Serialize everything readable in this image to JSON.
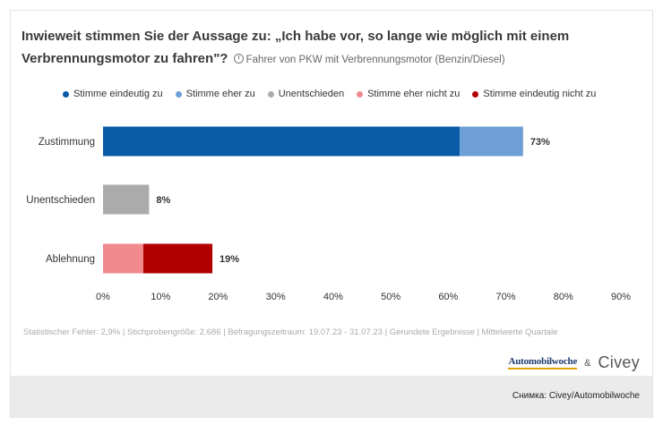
{
  "title": "Inwieweit stimmen Sie der Aussage zu: „Ich habe vor, so lange wie möglich mit einem Verbrennungsmotor zu fahren\"?",
  "subtitle": "Fahrer von PKW mit Verbrennungsmotor (Benzin/Diesel)",
  "legend": [
    {
      "label": "Stimme eindeutig zu",
      "color": "#0a5aa5"
    },
    {
      "label": "Stimme eher zu",
      "color": "#6d9fd6"
    },
    {
      "label": "Unentschieden",
      "color": "#ababab"
    },
    {
      "label": "Stimme eher nicht zu",
      "color": "#f08a8f"
    },
    {
      "label": "Stimme eindeutig nicht zu",
      "color": "#b00000"
    }
  ],
  "chart_data": {
    "type": "bar",
    "orientation": "horizontal",
    "stacked": true,
    "categories": [
      "Zustimmung",
      "Unentschieden",
      "Ablehnung"
    ],
    "series": [
      {
        "name": "Stimme eindeutig zu",
        "color": "#0a5aa5",
        "values": [
          62,
          0,
          0
        ]
      },
      {
        "name": "Stimme eher zu",
        "color": "#6d9fd6",
        "values": [
          11,
          0,
          0
        ]
      },
      {
        "name": "Unentschieden",
        "color": "#ababab",
        "values": [
          0,
          8,
          0
        ]
      },
      {
        "name": "Stimme eher nicht zu",
        "color": "#f08a8f",
        "values": [
          0,
          0,
          7
        ]
      },
      {
        "name": "Stimme eindeutig nicht zu",
        "color": "#b00000",
        "values": [
          0,
          0,
          12
        ]
      }
    ],
    "totals": [
      "73%",
      "8%",
      "19%"
    ],
    "xlim": [
      0,
      90
    ],
    "xticks": [
      0,
      10,
      20,
      30,
      40,
      50,
      60,
      70,
      80,
      90
    ],
    "xtick_labels": [
      "0%",
      "10%",
      "20%",
      "30%",
      "40%",
      "50%",
      "60%",
      "70%",
      "80%",
      "90%"
    ],
    "grid": false,
    "legend_position": "top"
  },
  "footnote": "Statistischer Fehler: 2,9% | Stichprobengröße: 2.686 | Befragungszeitraum: 19.07.23 - 31.07.23 | Gerundete Ergebnisse | Mittelwerte Quartale",
  "logos": {
    "automobilwoche": "Automobilwoche",
    "ampersand": "&",
    "civey": "Civey"
  },
  "credit": "Снимка: Civey/Automobilwoche"
}
